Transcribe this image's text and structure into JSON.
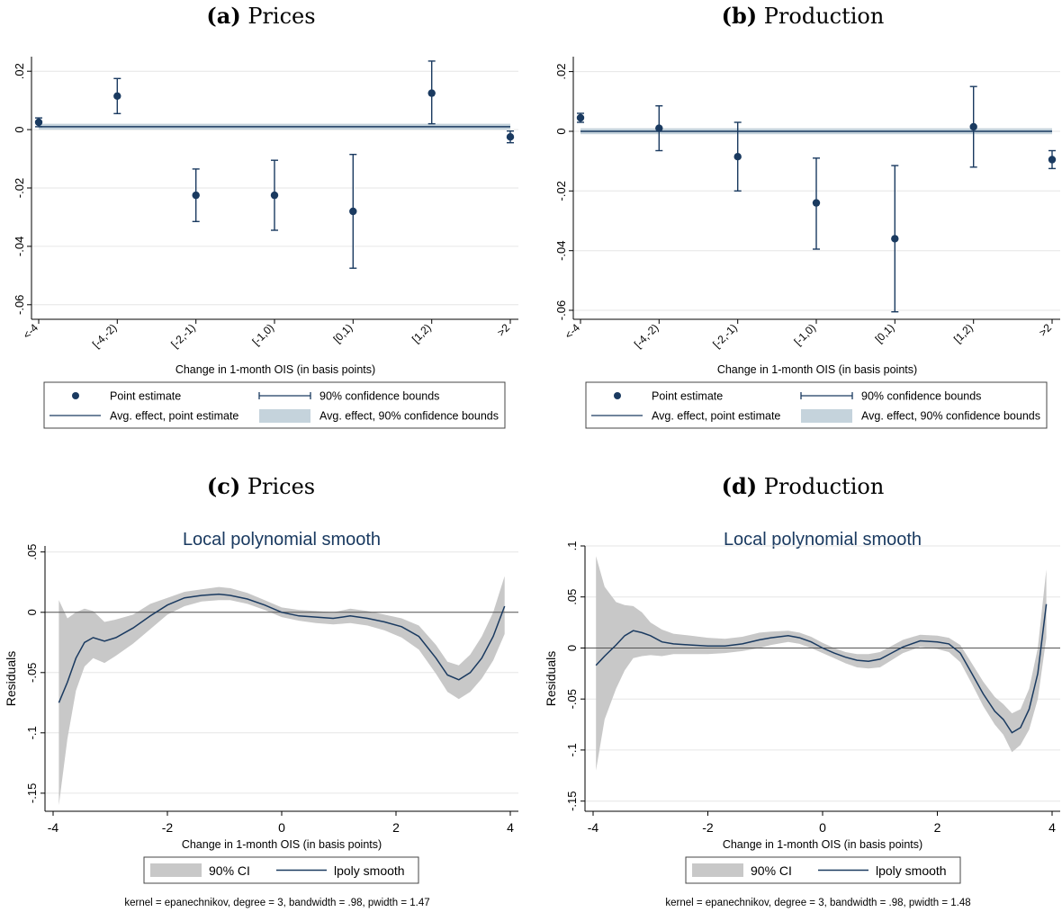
{
  "chart_data": [
    {
      "type": "scatter",
      "panel_label": "(a)",
      "panel_title": "Prices",
      "xlabel": "Change in 1-month OIS (in basis points)",
      "categories": [
        "<-4",
        "[-4,-2)",
        "[-2,-1)",
        "[-1,0)",
        "[0,1)",
        "[1,2)",
        ">2"
      ],
      "ylim": [
        -0.065,
        0.025
      ],
      "yticks": [
        0.02,
        0,
        -0.02,
        -0.04,
        -0.06
      ],
      "ytick_labels": [
        ".02",
        "0",
        "-.02",
        "-.04",
        "-.06"
      ],
      "grid": true,
      "series": [
        {
          "estimates": [
            0.0025,
            0.0115,
            -0.0225,
            -0.0225,
            -0.028,
            0.0125,
            -0.0025
          ],
          "ci_low": [
            0.001,
            0.0055,
            -0.0315,
            -0.0345,
            -0.0475,
            0.002,
            -0.0045
          ],
          "ci_high": [
            0.004,
            0.0175,
            -0.0135,
            -0.0105,
            -0.0085,
            0.0235,
            -0.0005
          ]
        }
      ],
      "avg_effect": 0.001,
      "avg_effect_ci": [
        0.0,
        0.002
      ],
      "legend": [
        "Point estimate",
        "90% confidence bounds",
        "Avg. effect, point estimate",
        "Avg. effect, 90% confidence bounds"
      ]
    },
    {
      "type": "scatter",
      "panel_label": "(b)",
      "panel_title": "Production",
      "xlabel": "Change in 1-month OIS (in basis points)",
      "categories": [
        "<-4",
        "[-4,-2)",
        "[-2,-1)",
        "[-1,0)",
        "[0,1)",
        "[1,2)",
        ">2"
      ],
      "ylim": [
        -0.063,
        0.025
      ],
      "yticks": [
        0.02,
        0,
        -0.02,
        -0.04,
        -0.06
      ],
      "ytick_labels": [
        ".02",
        "0",
        "-.02",
        "-.04",
        "-.06"
      ],
      "grid": true,
      "series": [
        {
          "estimates": [
            0.0045,
            0.001,
            -0.0085,
            -0.024,
            -0.036,
            0.0015,
            -0.0095
          ],
          "ci_low": [
            0.003,
            -0.0065,
            -0.02,
            -0.0395,
            -0.0605,
            -0.012,
            -0.0125
          ],
          "ci_high": [
            0.006,
            0.0085,
            0.003,
            -0.009,
            -0.0115,
            0.015,
            -0.0065
          ]
        }
      ],
      "avg_effect": 0.0,
      "avg_effect_ci": [
        -0.001,
        0.001
      ],
      "legend": [
        "Point estimate",
        "90% confidence bounds",
        "Avg. effect, point estimate",
        "Avg. effect, 90% confidence bounds"
      ]
    },
    {
      "type": "line",
      "panel_label": "(c)",
      "panel_title": "Prices",
      "title": "Local polynomial smooth",
      "xlabel": "Change in 1-month OIS (in basis points)",
      "ylabel": "Residuals",
      "xlim": [
        -4.1,
        4.1
      ],
      "ylim": [
        -0.165,
        0.055
      ],
      "xticks": [
        -4,
        -2,
        0,
        2,
        4
      ],
      "xtick_labels": [
        "-4",
        "-2",
        "0",
        "2",
        "4"
      ],
      "yticks": [
        0.05,
        0,
        -0.05,
        -0.1,
        -0.15
      ],
      "ytick_labels": [
        ".05",
        "0",
        "-.05",
        "-.1",
        "-.15"
      ],
      "grid": true,
      "reference_y": 0,
      "x": [
        -3.9,
        -3.75,
        -3.6,
        -3.45,
        -3.3,
        -3.1,
        -2.9,
        -2.6,
        -2.3,
        -2.0,
        -1.7,
        -1.4,
        -1.1,
        -0.9,
        -0.6,
        -0.3,
        0.0,
        0.3,
        0.6,
        0.9,
        1.2,
        1.5,
        1.8,
        2.1,
        2.4,
        2.7,
        2.9,
        3.1,
        3.3,
        3.5,
        3.7,
        3.9
      ],
      "series": [
        {
          "name": "lpoly smooth",
          "values": [
            -0.075,
            -0.058,
            -0.038,
            -0.025,
            -0.021,
            -0.024,
            -0.021,
            -0.013,
            -0.003,
            0.006,
            0.012,
            0.014,
            0.015,
            0.014,
            0.011,
            0.006,
            0.0,
            -0.003,
            -0.004,
            -0.005,
            -0.003,
            -0.005,
            -0.008,
            -0.012,
            -0.02,
            -0.038,
            -0.052,
            -0.056,
            -0.05,
            -0.038,
            -0.02,
            0.005
          ],
          "ci_low": [
            -0.16,
            -0.105,
            -0.065,
            -0.045,
            -0.038,
            -0.042,
            -0.036,
            -0.026,
            -0.014,
            -0.002,
            0.005,
            0.009,
            0.01,
            0.01,
            0.007,
            0.002,
            -0.004,
            -0.007,
            -0.009,
            -0.01,
            -0.009,
            -0.011,
            -0.015,
            -0.021,
            -0.031,
            -0.051,
            -0.066,
            -0.072,
            -0.066,
            -0.055,
            -0.04,
            -0.018
          ],
          "ci_high": [
            0.01,
            -0.005,
            0.0,
            0.003,
            0.001,
            -0.008,
            -0.006,
            -0.002,
            0.007,
            0.012,
            0.017,
            0.019,
            0.021,
            0.02,
            0.016,
            0.01,
            0.004,
            0.002,
            0.001,
            0.0,
            0.003,
            0.001,
            -0.002,
            -0.005,
            -0.011,
            -0.027,
            -0.041,
            -0.044,
            -0.035,
            -0.02,
            0.0,
            0.03
          ]
        }
      ],
      "legend": [
        "90% CI",
        "lpoly smooth"
      ],
      "note": "kernel = epanechnikov, degree = 3, bandwidth = .98, pwidth = 1.47"
    },
    {
      "type": "line",
      "panel_label": "(d)",
      "panel_title": "Production",
      "title": "Local polynomial smooth",
      "xlabel": "Change in 1-month OIS (in basis points)",
      "ylabel": "Residuals",
      "xlim": [
        -4.1,
        4.1
      ],
      "ylim": [
        -0.16,
        0.1
      ],
      "xticks": [
        -4,
        -2,
        0,
        2,
        4
      ],
      "xtick_labels": [
        "-4",
        "-2",
        "0",
        "2",
        "4"
      ],
      "yticks": [
        0.1,
        0.05,
        0,
        -0.05,
        -0.1,
        -0.15
      ],
      "ytick_labels": [
        ".1",
        ".05",
        "0",
        "-.05",
        "-.1",
        "-.15"
      ],
      "grid": true,
      "reference_y": 0,
      "x": [
        -3.95,
        -3.8,
        -3.6,
        -3.45,
        -3.3,
        -3.15,
        -3.0,
        -2.8,
        -2.6,
        -2.3,
        -2.0,
        -1.7,
        -1.4,
        -1.1,
        -0.9,
        -0.6,
        -0.4,
        -0.2,
        0.0,
        0.2,
        0.4,
        0.6,
        0.8,
        1.0,
        1.2,
        1.4,
        1.7,
        2.0,
        2.2,
        2.4,
        2.6,
        2.8,
        3.0,
        3.15,
        3.3,
        3.45,
        3.6,
        3.75,
        3.9
      ],
      "series": [
        {
          "name": "lpoly smooth",
          "values": [
            -0.017,
            -0.008,
            0.003,
            0.012,
            0.017,
            0.015,
            0.012,
            0.006,
            0.004,
            0.003,
            0.002,
            0.002,
            0.004,
            0.008,
            0.01,
            0.012,
            0.01,
            0.006,
            0.0,
            -0.005,
            -0.009,
            -0.012,
            -0.013,
            -0.011,
            -0.005,
            0.001,
            0.007,
            0.006,
            0.004,
            -0.005,
            -0.025,
            -0.045,
            -0.062,
            -0.07,
            -0.083,
            -0.078,
            -0.06,
            -0.025,
            0.043
          ],
          "ci_low": [
            -0.12,
            -0.07,
            -0.04,
            -0.022,
            -0.01,
            -0.008,
            -0.007,
            -0.008,
            -0.006,
            -0.006,
            -0.006,
            -0.005,
            -0.003,
            0.0,
            0.003,
            0.006,
            0.004,
            0.0,
            -0.005,
            -0.01,
            -0.015,
            -0.019,
            -0.02,
            -0.019,
            -0.012,
            -0.005,
            0.001,
            -0.001,
            -0.004,
            -0.014,
            -0.035,
            -0.057,
            -0.075,
            -0.085,
            -0.102,
            -0.095,
            -0.08,
            -0.05,
            0.01
          ],
          "ci_high": [
            0.09,
            0.06,
            0.045,
            0.042,
            0.041,
            0.035,
            0.025,
            0.018,
            0.014,
            0.012,
            0.01,
            0.009,
            0.011,
            0.015,
            0.016,
            0.017,
            0.015,
            0.011,
            0.005,
            0.0,
            -0.004,
            -0.006,
            -0.006,
            -0.004,
            0.002,
            0.008,
            0.013,
            0.012,
            0.01,
            0.003,
            -0.015,
            -0.033,
            -0.048,
            -0.055,
            -0.064,
            -0.06,
            -0.04,
            0.0,
            0.077
          ]
        }
      ],
      "legend": [
        "90% CI",
        "lpoly smooth"
      ],
      "note": "kernel = epanechnikov, degree = 3, bandwidth = .98, pwidth = 1.48"
    }
  ],
  "colors": {
    "navy": "#1a3a60",
    "ci_band_light": "#c5d3dc",
    "ci_band_gray": "#c8c8c8",
    "grid": "#e6e6e6"
  }
}
